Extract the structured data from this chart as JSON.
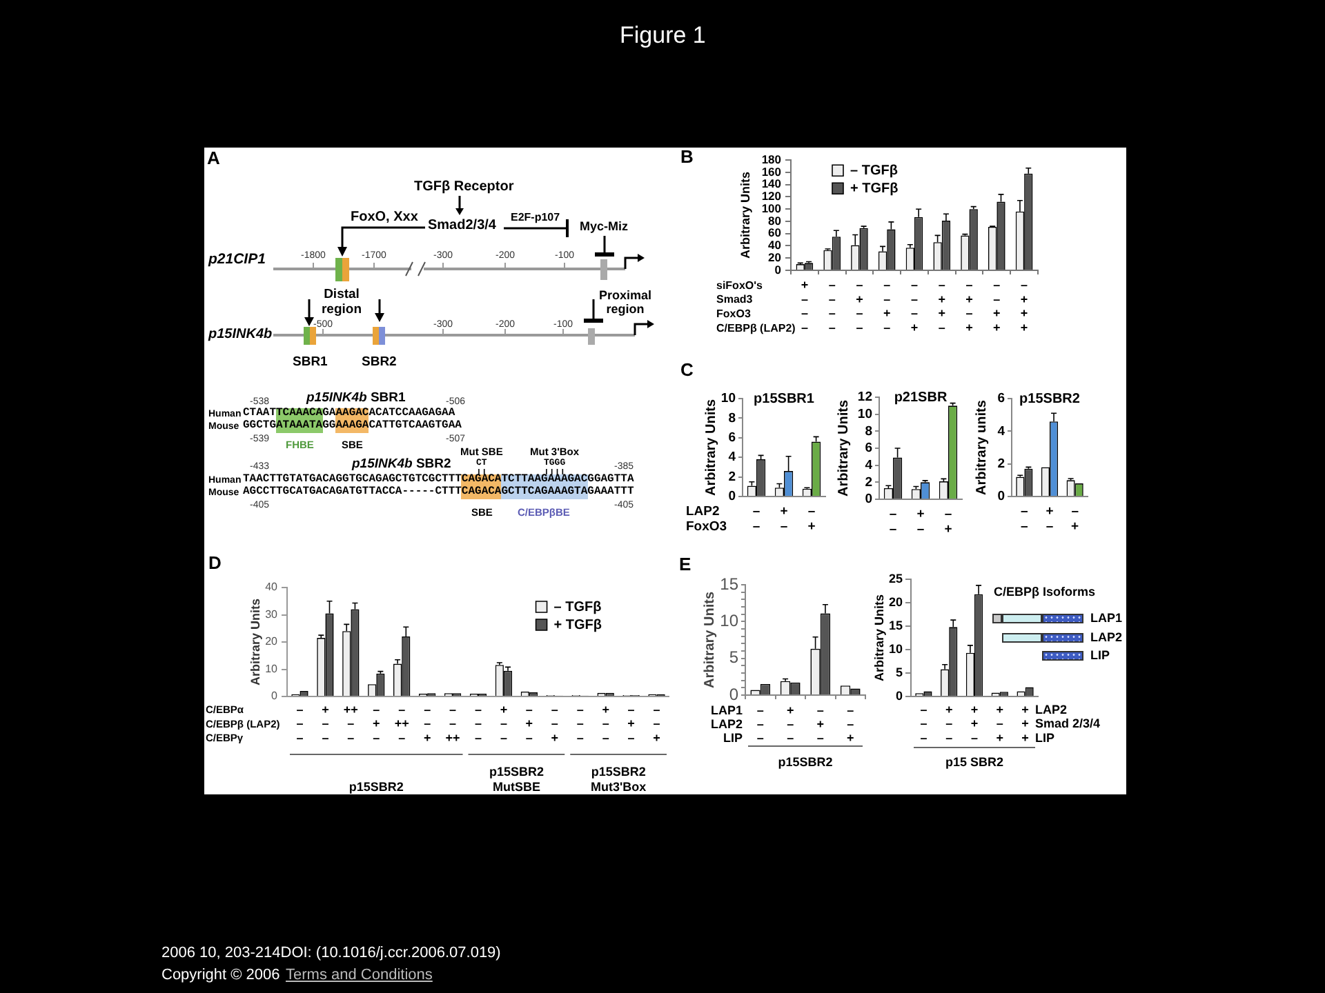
{
  "chart_data": [
    {
      "type": "other",
      "title": "Figure 1"
    },
    {
      "type": "other",
      "annotations": [
        "A",
        "TGFβ Receptor",
        "FoxO, Xxx",
        "Smad2/3/4",
        "E2F-p107",
        "Myc-Miz",
        "p21CIP1",
        "-1800",
        "-1700",
        "-300",
        "-200",
        "-100",
        "Distal region",
        "-500",
        "-300",
        "-200",
        "-100",
        "Proximal region",
        "p15INK4b",
        "SBR1",
        "SBR2",
        "p15INK4b SBR1",
        "-538",
        "-506",
        "Human",
        "CTAATTCAAACAGAAAGACACATCCAAGAGAA",
        "Mouse",
        "GGCTGATAAATAGGAAAGACATTGTCAAGTGAA",
        "-539",
        "-507",
        "FHBE",
        "SBE",
        "p15INK4b SBR2",
        "Mut SBE",
        "CT",
        "Mut 3'Box",
        "TGGG",
        "-433",
        "-385",
        "Human",
        "TAACTTGTATGACAGGTGCAGAGCTGTCGCTTTCAGACATCTTAAGAAAGACGGAGTTA",
        "Mouse",
        "AGCCTTGCATGACAGATGTTACCA-----CTTTCAGACAGCTTCAGAAAGTAGAAATTT",
        "-405",
        "-405",
        "SBE",
        "C/EBPβBE"
      ]
    },
    {
      "type": "bar",
      "categories": [
        "+\n–\n–\n–",
        "–\n–\n–\n–",
        "–\n+\n–\n–",
        "–\n–\n+\n–",
        "–\n–\n–\n+",
        "–\n+\n+\n–",
        "–\n+\n–\n+",
        "–\n–\n+\n+",
        "–\n+\n+\n+"
      ],
      "ylabel": "Arbitrary Units",
      "ylim": [
        0,
        180
      ],
      "yticks": [
        0,
        20,
        40,
        60,
        80,
        100,
        120,
        140,
        160,
        180
      ],
      "legend": "top left",
      "annotations": [
        "B",
        "siFoxO's",
        "Smad3",
        "FoxO3",
        "C/EBPβ (LAP2)"
      ],
      "series": [
        {
          "name": "– TGFβ",
          "color": "#eeeeee",
          "values": [
            10,
            33,
            41,
            31,
            37,
            46,
            57,
            71,
            96
          ],
          "errors": [
            [
              10,
              12
            ],
            [
              33,
              35
            ],
            [
              41,
              58
            ],
            [
              31,
              39
            ],
            [
              37,
              42
            ],
            [
              46,
              57
            ],
            [
              57,
              59
            ],
            [
              71,
              72
            ],
            [
              96,
              114
            ]
          ]
        },
        {
          "name": "+ TGFβ",
          "color": "#555555",
          "values": [
            12,
            55,
            69,
            67,
            87,
            81,
            100,
            112,
            158
          ],
          "errors": [
            [
              12,
              14
            ],
            [
              55,
              65
            ],
            [
              69,
              72
            ],
            [
              67,
              79
            ],
            [
              87,
              100
            ],
            [
              81,
              92
            ],
            [
              100,
              104
            ],
            [
              112,
              124
            ],
            [
              158,
              167
            ]
          ]
        }
      ]
    },
    {
      "type": "bar",
      "title": "p15SBR1",
      "categories": [
        "–\n–",
        "+\n–",
        "–\n+"
      ],
      "ylabel": "Arbitrary Units",
      "ylim": [
        0,
        10
      ],
      "yticks": [
        0,
        2,
        4,
        6,
        8,
        10
      ],
      "annotations": [
        "C",
        "LAP2",
        "FoxO3"
      ],
      "series": [
        {
          "color": "#eeeeee",
          "values": [
            1.1,
            0.9,
            0.8
          ],
          "errors": [
            [
              1.1,
              1.5
            ],
            [
              0.9,
              1.3
            ],
            [
              0.8,
              0.9
            ]
          ]
        },
        {
          "colors": [
            "#555555",
            "#4f8fd6",
            "#6aac46"
          ],
          "values": [
            3.8,
            2.6,
            5.6
          ],
          "errors": [
            [
              3.8,
              4.2
            ],
            [
              2.6,
              4.1
            ],
            [
              5.6,
              6.1
            ]
          ]
        }
      ]
    },
    {
      "type": "bar",
      "title": "p21SBR",
      "categories": [
        "–\n–",
        "+\n–",
        "–\n+"
      ],
      "ylabel": "Arbitrary Units",
      "ylim": [
        0,
        12
      ],
      "yticks": [
        0,
        2,
        4,
        6,
        8,
        10,
        12
      ],
      "series": [
        {
          "color": "#eeeeee",
          "values": [
            1.3,
            1.2,
            2.1
          ],
          "errors": [
            [
              1.3,
              1.6
            ],
            [
              1.2,
              1.5
            ],
            [
              2.1,
              2.4
            ]
          ]
        },
        {
          "colors": [
            "#555555",
            "#4f8fd6",
            "#6aac46"
          ],
          "values": [
            4.9,
            2.0,
            11.0
          ],
          "errors": [
            [
              4.9,
              6.0
            ],
            [
              2.0,
              2.2
            ],
            [
              11.0,
              11.3
            ]
          ]
        }
      ]
    },
    {
      "type": "bar",
      "title": "p15SBR2",
      "categories": [
        "–\n–",
        "+\n–",
        "–\n+"
      ],
      "ylabel": "Arbitrary units",
      "ylim": [
        0,
        6
      ],
      "yticks": [
        0,
        2,
        4,
        6
      ],
      "series": [
        {
          "color": "#eeeeee",
          "values": [
            1.2,
            1.8,
            1.0
          ],
          "errors": [
            [
              1.2,
              1.3
            ],
            null,
            [
              1.0,
              1.1
            ]
          ]
        },
        {
          "colors": [
            "#555555",
            "#4f8fd6",
            "#6aac46"
          ],
          "values": [
            1.7,
            4.6,
            0.8
          ],
          "errors": [
            [
              1.7,
              1.8
            ],
            [
              4.6,
              5.1
            ],
            null
          ]
        }
      ]
    },
    {
      "type": "bar",
      "categories": [
        "–\n–\n–",
        "+\n–\n–",
        "++\n–\n–",
        "–\n+\n–",
        "–\n++\n–",
        "–\n–\n+",
        "–\n–\n++",
        "–\n–\n–",
        "+\n–\n–",
        "–\n+\n–",
        "–\n–\n+",
        "–\n–\n–",
        "+\n–\n–",
        "–\n+\n–",
        "–\n–\n+"
      ],
      "ylabel": "Arbitrary Units",
      "ylim": [
        0,
        40
      ],
      "yticks": [
        0,
        10,
        20,
        30,
        40
      ],
      "legend": "top right",
      "annotations": [
        "D",
        "C/EBPα",
        "C/EBPβ (LAP2)",
        "C/EBPγ",
        "p15SBR2",
        "p15SBR2 MutSBE",
        "p15SBR2 Mut3'Box"
      ],
      "series": [
        {
          "name": "– TGFβ",
          "color": "#eeeeee",
          "values": [
            0.8,
            21.5,
            24,
            4.5,
            12,
            1,
            1.2,
            1,
            11.6,
            1.8,
            0.5,
            0.5,
            1.3,
            0.5,
            0.8
          ],
          "errors": [
            null,
            [
              21.5,
              22.5
            ],
            [
              24,
              26.5
            ],
            null,
            [
              12,
              13.5
            ],
            null,
            null,
            null,
            [
              11.6,
              12.4
            ],
            null,
            null,
            null,
            null,
            null,
            null
          ]
        },
        {
          "name": "+ TGFβ",
          "color": "#555555",
          "values": [
            2,
            30.5,
            32,
            8.4,
            22,
            1.2,
            1.2,
            1,
            9.4,
            1.5,
            0.3,
            0.3,
            1.3,
            0.5,
            0.8
          ],
          "errors": [
            null,
            [
              30.5,
              35
            ],
            [
              32,
              34.3
            ],
            [
              8.4,
              9.2
            ],
            [
              22,
              25.5
            ],
            null,
            null,
            null,
            [
              9.4,
              10.8
            ],
            null,
            null,
            null,
            null,
            null,
            null
          ]
        }
      ]
    },
    {
      "type": "bar",
      "categories": [
        "–\n–\n–",
        "+\n–\n–",
        "–\n+\n–",
        "–\n–\n+"
      ],
      "ylabel": "Arbitrary Units",
      "ylim": [
        0,
        15
      ],
      "yticks": [
        0,
        {
          "value": 1,
          "label": null
        },
        {
          "value": 2,
          "label": null
        },
        {
          "value": 3,
          "label": null
        },
        {
          "value": 4,
          "label": null
        },
        5,
        {
          "value": 6,
          "label": null
        },
        {
          "value": 7,
          "label": null
        },
        {
          "value": 8,
          "label": null
        },
        {
          "value": 9,
          "label": null
        },
        10,
        {
          "value": 11,
          "label": null
        },
        {
          "value": 12,
          "label": null
        },
        {
          "value": 13,
          "label": null
        },
        {
          "value": 14,
          "label": null
        },
        15
      ],
      "annotations": [
        "E",
        "LAP1",
        "LAP2",
        "LIP",
        "p15SBR2"
      ],
      "series": [
        {
          "color": "#eeeeee",
          "values": [
            0.7,
            1.9,
            6.3,
            1.3
          ],
          "errors": [
            null,
            [
              1.9,
              2.2
            ],
            [
              6.3,
              7.9
            ],
            null
          ]
        },
        {
          "color": "#555555",
          "values": [
            1.5,
            1.7,
            11.1,
            0.9
          ],
          "errors": [
            null,
            null,
            [
              11.1,
              12.3
            ],
            null
          ]
        }
      ]
    },
    {
      "type": "bar",
      "categories": [
        "–\n–\n–",
        "+\n–\n–",
        "+\n+\n–",
        "+\n–\n+",
        "+\n+\n+"
      ],
      "ylabel": "Arbitrary Units",
      "ylim": [
        0,
        25
      ],
      "yticks": [
        0,
        5,
        10,
        15,
        20,
        25
      ],
      "annotations": [
        "LAP2",
        "Smad 2/3/4",
        "LIP",
        "p15 SBR2",
        "C/EBPβ Isoforms",
        "LAP1",
        "LAP2",
        "LIP"
      ],
      "series": [
        {
          "color": "#eeeeee",
          "values": [
            0.7,
            5.8,
            9.3,
            0.8,
            1.1
          ],
          "errors": [
            null,
            [
              5.8,
              6.8
            ],
            [
              9.3,
              10.9
            ],
            null,
            null
          ]
        },
        {
          "color": "#555555",
          "values": [
            1.1,
            14.8,
            21.8,
            1.0,
            2.0
          ],
          "errors": [
            null,
            [
              14.8,
              16.3
            ],
            [
              21.8,
              23.7
            ],
            null,
            null
          ]
        }
      ]
    },
    {
      "type": "other",
      "annotations": [
        "2006 10, 203-214DOI: (10.1016/j.ccr.2006.07.019)",
        "Copyright © 2006",
        "Terms and Conditions"
      ]
    }
  ]
}
